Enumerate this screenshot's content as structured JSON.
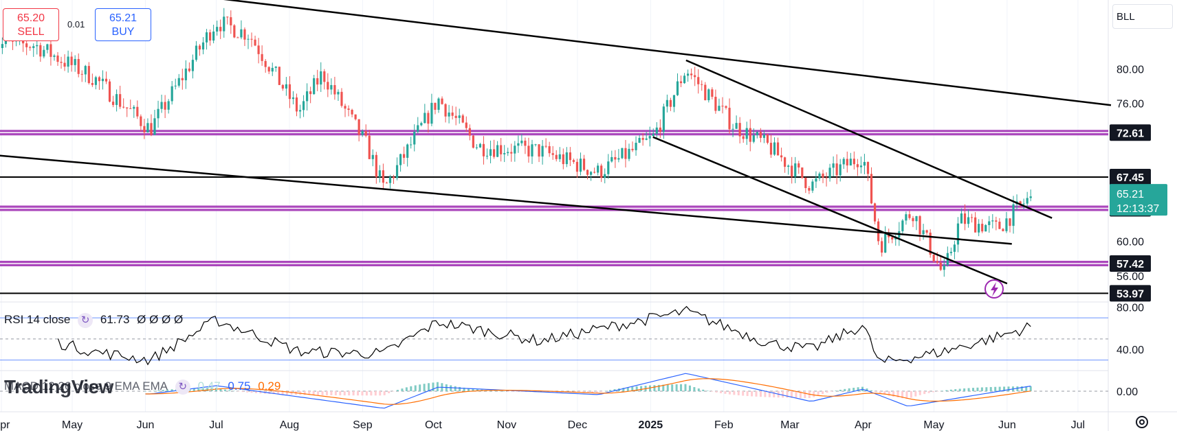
{
  "order_panel": {
    "sell_price": "65.20",
    "sell_label": "SELL",
    "spread": "0.01",
    "buy_price": "65.21",
    "buy_label": "BUY"
  },
  "symbol": "BLL",
  "colors": {
    "up": "#26a69a",
    "down": "#ef5350",
    "trendline": "#000000",
    "level": "#9c27b0",
    "rsi": "#000000",
    "rsi_band": "#2962ff",
    "macd_line": "#2962ff",
    "signal_line": "#ff6d00",
    "price_tag": "#26a69a",
    "value_tag": "#131722"
  },
  "price_axis": {
    "ticks": [
      "80.00",
      "76.00",
      "60.00",
      "56.00"
    ],
    "value_tags": [
      {
        "label": "72.61",
        "value": 72.61
      },
      {
        "label": "67.45",
        "value": 67.45
      },
      {
        "label": "63.83",
        "value": 63.83
      },
      {
        "label": "57.42",
        "value": 57.42
      },
      {
        "label": "53.97",
        "value": 53.97
      }
    ],
    "current_price": "65.21",
    "countdown": "12:13:37"
  },
  "rsi_axis": {
    "ticks": [
      "80.00",
      "40.00"
    ]
  },
  "macd_axis": {
    "ticks": [
      "0.00"
    ]
  },
  "time_axis": {
    "labels": [
      "Apr",
      "May",
      "Jun",
      "Jul",
      "Aug",
      "Sep",
      "Oct",
      "Nov",
      "Dec",
      "2025",
      "Feb",
      "Mar",
      "Apr",
      "May",
      "Jun",
      "Jul"
    ]
  },
  "rsi_legend": {
    "name": "RSI 14 close",
    "value": "61.73",
    "extras": "Ø Ø Ø Ø"
  },
  "macd_legend": {
    "name": "MACD 12 26 close 9 EMA EMA",
    "hist": "0.47",
    "macd": "0.75",
    "signal": "0.29"
  },
  "logo_text": "TradingView",
  "chart_data": [
    {
      "type": "candlestick",
      "title": "",
      "x_range": [
        "2024-04",
        "2025-07"
      ],
      "ylim": [
        53.2,
        88
      ],
      "key_points": [
        {
          "date": "2024-04-15",
          "close": 82.8
        },
        {
          "date": "2024-05-10",
          "close": 79.0
        },
        {
          "date": "2024-06-03",
          "close": 73.0
        },
        {
          "date": "2024-07-01",
          "close": 85.5
        },
        {
          "date": "2024-07-15",
          "close": 84.0
        },
        {
          "date": "2024-08-05",
          "close": 75.0
        },
        {
          "date": "2024-08-15",
          "close": 79.5
        },
        {
          "date": "2024-09-03",
          "close": 71.0
        },
        {
          "date": "2024-09-10",
          "close": 66.0
        },
        {
          "date": "2024-10-03",
          "close": 76.5
        },
        {
          "date": "2024-10-20",
          "close": 71.0
        },
        {
          "date": "2024-11-15",
          "close": 70.5
        },
        {
          "date": "2024-12-10",
          "close": 68.0
        },
        {
          "date": "2025-01-02",
          "close": 72.0
        },
        {
          "date": "2025-01-16",
          "close": 80.0
        },
        {
          "date": "2025-02-05",
          "close": 73.5
        },
        {
          "date": "2025-02-20",
          "close": 71.0
        },
        {
          "date": "2025-03-10",
          "close": 66.5
        },
        {
          "date": "2025-04-01",
          "close": 70.0
        },
        {
          "date": "2025-04-08",
          "close": 59.5
        },
        {
          "date": "2025-04-22",
          "close": 63.5
        },
        {
          "date": "2025-05-05",
          "close": 56.0
        },
        {
          "date": "2025-05-12",
          "close": 62.5
        },
        {
          "date": "2025-05-28",
          "close": 61.5
        },
        {
          "date": "2025-06-11",
          "close": 65.21
        }
      ],
      "horizontal_levels": [
        72.61,
        67.45,
        63.83,
        57.42,
        53.97
      ],
      "trendlines": [
        {
          "from": [
            "2024-07-01",
            88.2
          ],
          "to": [
            "2025-07-15",
            75.8
          ]
        },
        {
          "from": [
            "2024-03-25",
            70.1
          ],
          "to": [
            "2025-06-03",
            59.7
          ]
        },
        {
          "from": [
            "2025-01-16",
            81.0
          ],
          "to": [
            "2025-06-20",
            62.7
          ]
        },
        {
          "from": [
            "2025-01-02",
            72.1
          ],
          "to": [
            "2025-06-01",
            55.1
          ]
        }
      ]
    },
    {
      "type": "line",
      "title": "RSI 14 close",
      "ylim": [
        20,
        85
      ],
      "bands": [
        70,
        50,
        30
      ],
      "last_value": 61.73,
      "key_points": [
        {
          "date": "2024-04-15",
          "value": 52
        },
        {
          "date": "2024-05-10",
          "value": 38
        },
        {
          "date": "2024-06-03",
          "value": 30
        },
        {
          "date": "2024-07-01",
          "value": 68
        },
        {
          "date": "2024-08-05",
          "value": 38
        },
        {
          "date": "2024-09-10",
          "value": 36
        },
        {
          "date": "2024-10-03",
          "value": 66
        },
        {
          "date": "2024-11-15",
          "value": 48
        },
        {
          "date": "2025-01-16",
          "value": 76
        },
        {
          "date": "2025-02-20",
          "value": 46
        },
        {
          "date": "2025-03-10",
          "value": 40
        },
        {
          "date": "2025-04-01",
          "value": 63
        },
        {
          "date": "2025-04-08",
          "value": 27
        },
        {
          "date": "2025-05-05",
          "value": 38
        },
        {
          "date": "2025-05-28",
          "value": 52
        },
        {
          "date": "2025-06-11",
          "value": 61.73
        }
      ]
    },
    {
      "type": "line",
      "title": "MACD 12 26 close 9 EMA EMA",
      "ylim": [
        -3,
        3
      ],
      "series": [
        {
          "name": "MACD",
          "last_value": 0.75
        },
        {
          "name": "Signal",
          "last_value": 0.29
        },
        {
          "name": "Histogram",
          "last_value": 0.47
        }
      ],
      "key_points": [
        {
          "date": "2024-06-03",
          "macd": -0.4
        },
        {
          "date": "2024-07-01",
          "macd": 0.8
        },
        {
          "date": "2024-09-10",
          "macd": -2.5
        },
        {
          "date": "2024-10-03",
          "macd": 0.6
        },
        {
          "date": "2024-12-10",
          "macd": -0.5
        },
        {
          "date": "2025-01-16",
          "macd": 2.6
        },
        {
          "date": "2025-03-10",
          "macd": -1.5
        },
        {
          "date": "2025-04-01",
          "macd": 0.3
        },
        {
          "date": "2025-04-20",
          "macd": -2.2
        },
        {
          "date": "2025-05-20",
          "macd": -0.5
        },
        {
          "date": "2025-06-11",
          "macd": 0.75
        }
      ]
    }
  ]
}
